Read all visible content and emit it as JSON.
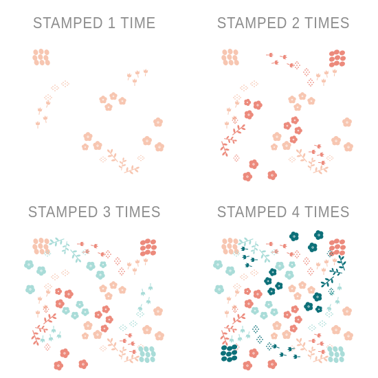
{
  "panels": [
    {
      "title": "STAMPED 1 TIME",
      "layers": [
        "peach-light"
      ]
    },
    {
      "title": "STAMPED 2 TIMES",
      "layers": [
        "peach-light",
        "coral"
      ]
    },
    {
      "title": "STAMPED 3 TIMES",
      "layers": [
        "peach-light",
        "coral",
        "aqua"
      ]
    },
    {
      "title": "STAMPED 4 TIMES",
      "layers": [
        "peach-light",
        "coral",
        "aqua",
        "teal"
      ]
    }
  ],
  "colors": {
    "title_text": "#8c8c8c",
    "peach-light": "#f7c6b1",
    "coral": "#ec8a7c",
    "aqua": "#a9dcd8",
    "teal": "#0d7079"
  },
  "motifs": [
    "flower-icon",
    "leaf-sprig-icon",
    "tulip-bud-icon",
    "dotted-circle-icon",
    "oval-petal-icon"
  ]
}
